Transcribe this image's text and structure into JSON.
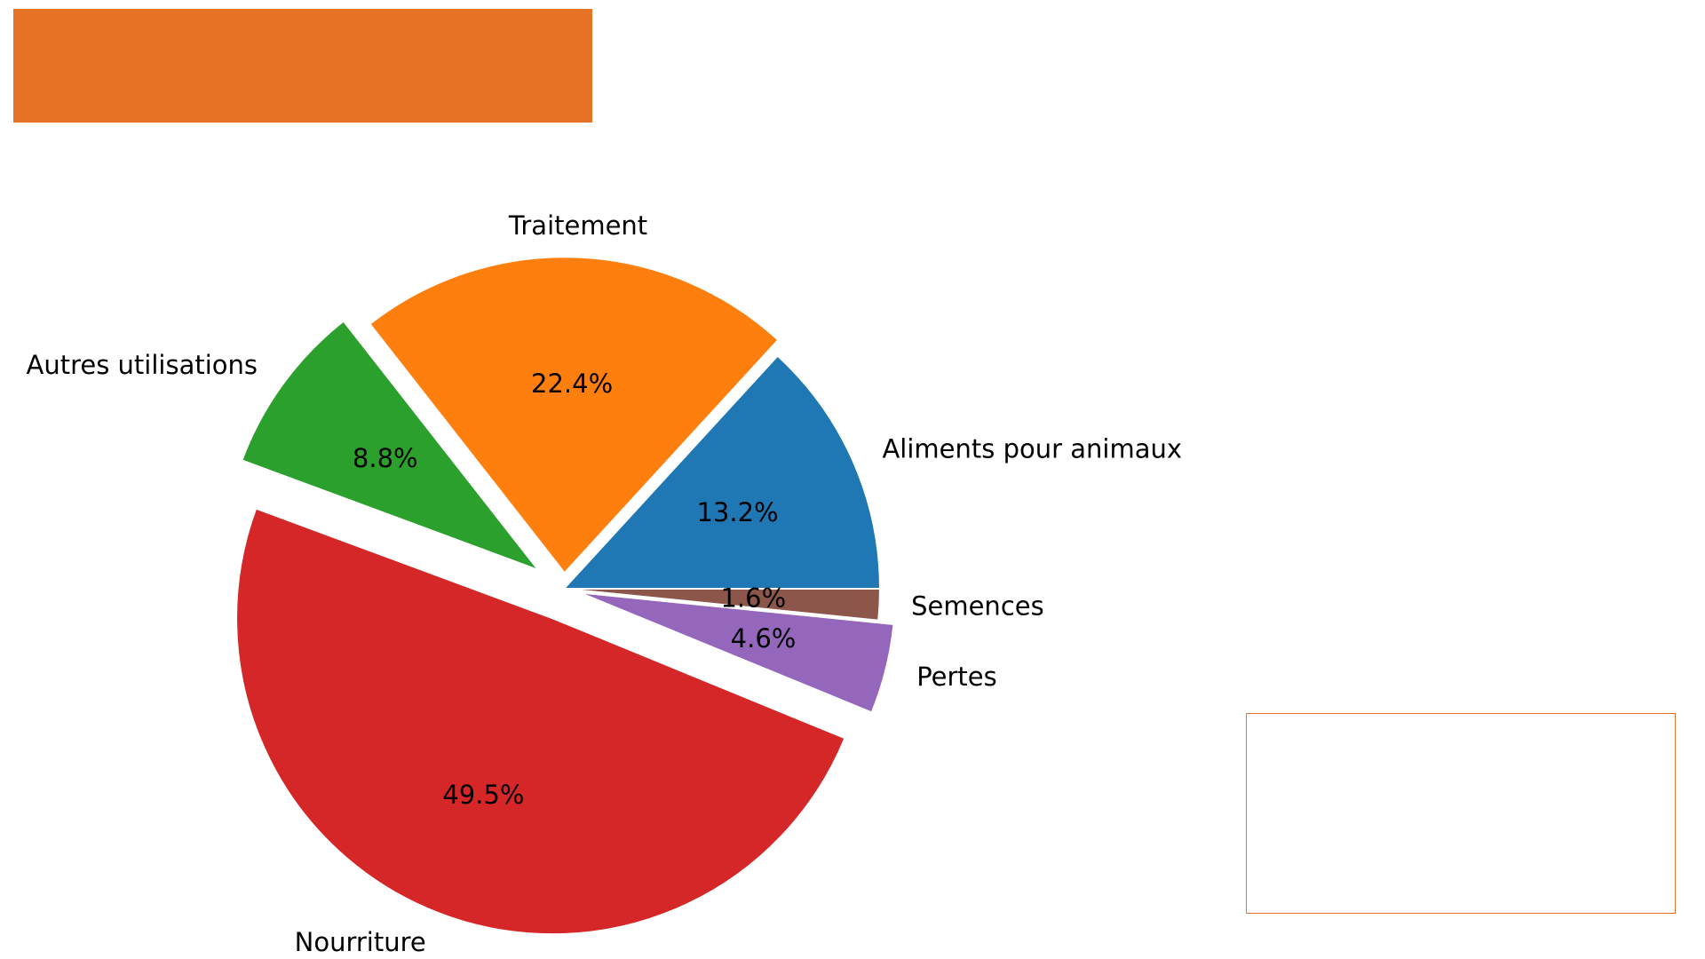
{
  "chart_data": {
    "type": "pie",
    "slices": [
      {
        "label": "Aliments pour animaux",
        "pct_text": "13.2%",
        "value": 13.2,
        "color": "#1f77b4",
        "explode": 0.0
      },
      {
        "label": "Traitement",
        "pct_text": "22.4%",
        "value": 22.4,
        "color": "#ff7f0e",
        "explode": 0.05
      },
      {
        "label": "Autres utilisations",
        "pct_text": "8.8%",
        "value": 8.8,
        "color": "#2ca02c",
        "explode": 0.1
      },
      {
        "label": "Nourriture",
        "pct_text": "49.5%",
        "value": 49.5,
        "color": "#d62728",
        "explode": 0.1
      },
      {
        "label": "Pertes",
        "pct_text": "4.6%",
        "value": 4.6,
        "color": "#9467bd",
        "explode": 0.05
      },
      {
        "label": "Semences",
        "pct_text": "1.6%",
        "value": 1.6,
        "color": "#8c564b",
        "explode": 0.0
      }
    ],
    "start_angle_deg": 0,
    "direction": "counterclockwise",
    "slice_edge_color": "#ffffff"
  },
  "banner": {
    "color": "#e67225"
  },
  "note_box": {
    "border_color": "#e67225"
  }
}
